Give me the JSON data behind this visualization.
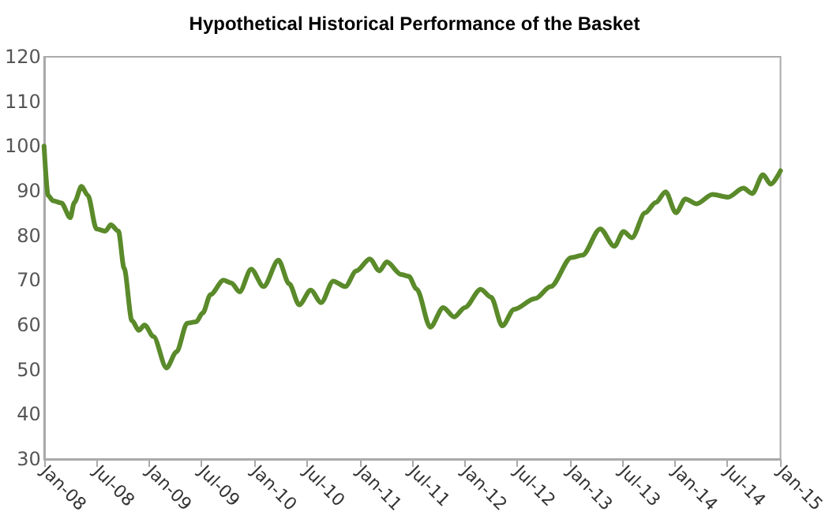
{
  "chart_data": {
    "type": "line",
    "title": "Hypothetical Historical Performance of the Basket",
    "x": [
      "2008-01-01",
      "2008-01-15",
      "2008-02-01",
      "2008-03-01",
      "2008-04-01",
      "2008-04-15",
      "2008-05-10",
      "2008-06-01",
      "2008-07-01",
      "2008-08-01",
      "2008-08-20",
      "2008-09-15",
      "2008-10-05",
      "2008-11-01",
      "2008-11-25",
      "2008-12-15",
      "2009-01-15",
      "2009-03-01",
      "2009-04-05",
      "2009-05-12",
      "2009-06-12",
      "2009-07-05",
      "2009-08-01",
      "2009-09-15",
      "2009-10-12",
      "2009-11-10",
      "2009-12-20",
      "2010-02-01",
      "2010-03-25",
      "2010-05-01",
      "2010-06-05",
      "2010-07-15",
      "2010-08-20",
      "2010-10-01",
      "2010-11-12",
      "2010-12-20",
      "2011-02-05",
      "2011-03-10",
      "2011-04-05",
      "2011-05-25",
      "2011-06-20",
      "2011-07-18",
      "2011-09-03",
      "2011-10-18",
      "2011-11-25",
      "2012-01-01",
      "2012-02-25",
      "2012-04-01",
      "2012-05-10",
      "2012-06-20",
      "2012-09-01",
      "2012-10-25",
      "2013-01-05",
      "2013-02-12",
      "2013-04-15",
      "2013-06-03",
      "2013-07-05",
      "2013-08-03",
      "2013-09-18",
      "2013-10-25",
      "2013-11-28",
      "2014-01-03",
      "2014-02-05",
      "2014-03-15",
      "2014-05-10",
      "2014-07-03",
      "2014-08-25",
      "2014-09-25",
      "2014-11-01",
      "2014-11-28",
      "2015-01-01"
    ],
    "series": [
      {
        "color": "#5a8a2a",
        "values": [
          100,
          89,
          87.8,
          87.3,
          84,
          87.4,
          91,
          89,
          81.5,
          81,
          82.4,
          81,
          72.7,
          61,
          58.8,
          60,
          57.4,
          50.4,
          54,
          60.4,
          60.7,
          62.7,
          66.8,
          70,
          69.4,
          67.4,
          72.5,
          68.6,
          74.5,
          69.2,
          64.5,
          67.8,
          65,
          69.8,
          68.6,
          72.1,
          74.8,
          72.1,
          74.1,
          71.3,
          70.9,
          68,
          59.5,
          63.9,
          61.8,
          63.9,
          68,
          66.2,
          59.8,
          63.5,
          65.9,
          68.6,
          75.1,
          75.6,
          81.5,
          77.6,
          80.9,
          79.5,
          85.1,
          87.4,
          89.8,
          85.1,
          88.2,
          87.1,
          89.2,
          88.6,
          90.6,
          89.4,
          93.6,
          91.5,
          94.5
        ]
      }
    ],
    "xlim": [
      "2008-01-01",
      "2015-01-01"
    ],
    "xticks": [
      {
        "value": "2008-01-01",
        "label": "Jan-08"
      },
      {
        "value": "2008-07-01",
        "label": "Jul-08"
      },
      {
        "value": "2009-01-01",
        "label": "Jan-09"
      },
      {
        "value": "2009-07-01",
        "label": "Jul-09"
      },
      {
        "value": "2010-01-01",
        "label": "Jan-10"
      },
      {
        "value": "2010-07-01",
        "label": "Jul-10"
      },
      {
        "value": "2011-01-01",
        "label": "Jan-11"
      },
      {
        "value": "2011-07-01",
        "label": "Jul-11"
      },
      {
        "value": "2012-01-01",
        "label": "Jan-12"
      },
      {
        "value": "2012-07-01",
        "label": "Jul-12"
      },
      {
        "value": "2013-01-01",
        "label": "Jan-13"
      },
      {
        "value": "2013-07-01",
        "label": "Jul-13"
      },
      {
        "value": "2014-01-01",
        "label": "Jan-14"
      },
      {
        "value": "2014-07-01",
        "label": "Jul-14"
      },
      {
        "value": "2015-01-01",
        "label": "Jan-15"
      }
    ],
    "ylim": [
      30,
      120
    ],
    "yticks": [
      30,
      40,
      50,
      60,
      70,
      80,
      90,
      100,
      110,
      120
    ],
    "grid": false,
    "marker": "none",
    "line_style": "solid"
  }
}
